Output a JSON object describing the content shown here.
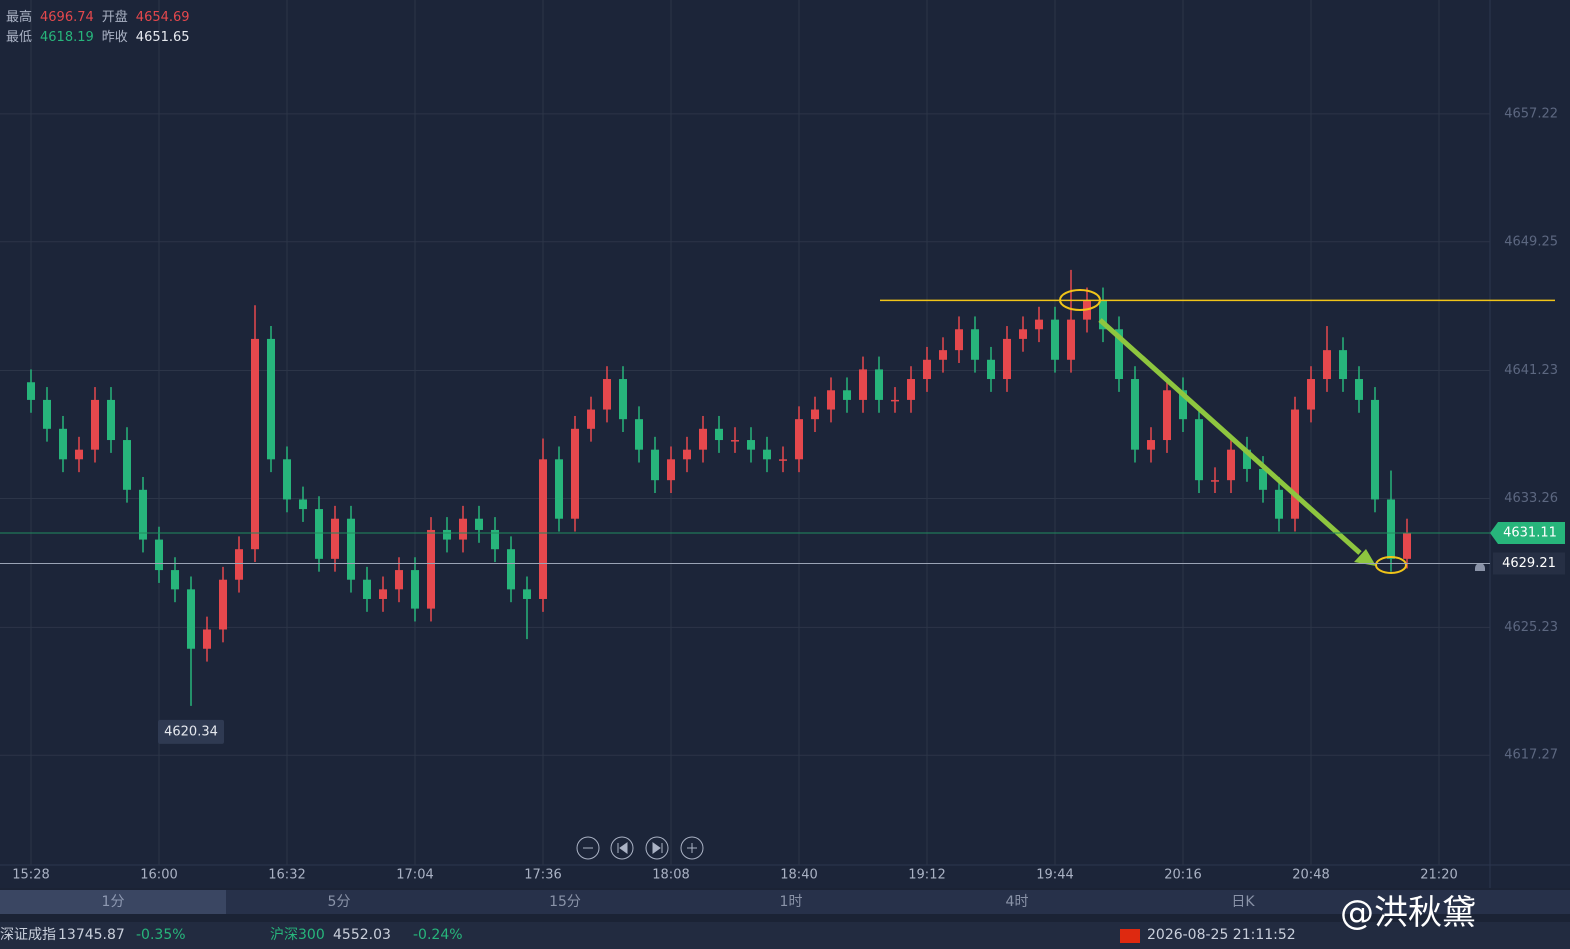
{
  "header": {
    "high_label": "最高",
    "high": "4696.74",
    "open_label": "开盘",
    "open": "4654.69",
    "low_label": "最低",
    "low": "4618.19",
    "prev_label": "昨收",
    "prev": "4651.65"
  },
  "chart_data": {
    "type": "candlestick",
    "up_color": "#e5484d",
    "down_color": "#27b57b",
    "grid": true,
    "ylim": [
      4610.43,
      4664.31
    ],
    "yticks": [
      4617.27,
      4625.23,
      4633.26,
      4641.23,
      4649.25,
      4657.22
    ],
    "xticks": [
      {
        "value": 0,
        "label": "15:28"
      },
      {
        "value": 8,
        "label": "16:00"
      },
      {
        "value": 16,
        "label": "16:32"
      },
      {
        "value": 24,
        "label": "17:04"
      },
      {
        "value": 32,
        "label": "17:36"
      },
      {
        "value": 40,
        "label": "18:08"
      },
      {
        "value": 48,
        "label": "18:40"
      },
      {
        "value": 56,
        "label": "19:12"
      },
      {
        "value": 64,
        "label": "19:44"
      },
      {
        "value": 72,
        "label": "20:16"
      },
      {
        "value": 80,
        "label": "20:48"
      },
      {
        "value": 88,
        "label": "21:20"
      }
    ],
    "open": [
      4640.5,
      4639.4,
      4637.6,
      4635.7,
      4636.3,
      4639.4,
      4636.9,
      4633.8,
      4630.7,
      4628.8,
      4627.6,
      4623.9,
      4625.1,
      4628.2,
      4630.1,
      4643.2,
      4635.7,
      4633.2,
      4632.6,
      4629.5,
      4632.0,
      4628.2,
      4627.0,
      4627.6,
      4628.8,
      4626.4,
      4631.3,
      4630.7,
      4632.0,
      4631.3,
      4630.1,
      4627.6,
      4627.0,
      4635.7,
      4632.0,
      4637.6,
      4638.8,
      4640.7,
      4638.2,
      4636.3,
      4634.4,
      4635.7,
      4636.3,
      4637.6,
      4636.9,
      4636.9,
      4636.3,
      4635.7,
      4635.7,
      4638.2,
      4638.8,
      4640.0,
      4639.4,
      4641.3,
      4639.4,
      4639.4,
      4640.7,
      4641.9,
      4642.5,
      4643.8,
      4641.9,
      4640.7,
      4643.2,
      4643.8,
      4644.4,
      4641.9,
      4644.4,
      4645.6,
      4643.8,
      4640.7,
      4636.3,
      4636.9,
      4640.0,
      4638.2,
      4634.4,
      4634.4,
      4636.3,
      4635.1,
      4633.8,
      4632.0,
      4638.8,
      4640.7,
      4642.5,
      4640.7,
      4639.4,
      4633.2,
      4629.5
    ],
    "high": [
      4641.3,
      4640.2,
      4638.4,
      4637.1,
      4640.2,
      4640.2,
      4637.7,
      4634.6,
      4631.5,
      4629.6,
      4628.4,
      4625.9,
      4629.0,
      4630.9,
      4645.3,
      4644.0,
      4636.5,
      4634.0,
      4633.4,
      4632.8,
      4632.8,
      4629.0,
      4628.4,
      4629.6,
      4629.6,
      4632.1,
      4632.1,
      4632.8,
      4632.8,
      4632.1,
      4630.9,
      4628.4,
      4637.0,
      4636.5,
      4638.4,
      4639.6,
      4641.5,
      4641.5,
      4639.0,
      4637.1,
      4636.5,
      4637.1,
      4638.4,
      4638.4,
      4637.7,
      4637.7,
      4637.1,
      4636.5,
      4639.0,
      4639.6,
      4640.8,
      4640.8,
      4642.1,
      4642.1,
      4640.2,
      4641.5,
      4642.7,
      4643.3,
      4644.6,
      4644.6,
      4642.7,
      4644.0,
      4644.6,
      4645.2,
      4645.2,
      4647.5,
      4646.4,
      4646.4,
      4644.6,
      4641.5,
      4637.7,
      4640.8,
      4640.8,
      4639.0,
      4635.2,
      4637.1,
      4637.1,
      4635.9,
      4634.6,
      4639.6,
      4641.5,
      4644.0,
      4643.3,
      4641.5,
      4640.2,
      4635.0,
      4632.0
    ],
    "low": [
      4638.6,
      4636.8,
      4634.9,
      4634.9,
      4635.5,
      4636.1,
      4633.0,
      4629.9,
      4628.0,
      4626.8,
      4620.34,
      4623.1,
      4624.3,
      4627.4,
      4629.3,
      4634.9,
      4632.4,
      4631.8,
      4628.7,
      4628.7,
      4627.4,
      4626.2,
      4626.2,
      4626.8,
      4625.6,
      4625.6,
      4629.9,
      4629.9,
      4630.5,
      4629.3,
      4626.8,
      4624.5,
      4626.2,
      4631.2,
      4631.2,
      4636.8,
      4638.0,
      4637.4,
      4635.5,
      4633.6,
      4633.6,
      4634.9,
      4635.5,
      4636.1,
      4636.1,
      4635.5,
      4634.9,
      4634.9,
      4634.9,
      4637.4,
      4638.0,
      4638.6,
      4638.6,
      4638.6,
      4638.6,
      4638.6,
      4639.9,
      4641.1,
      4641.7,
      4641.1,
      4639.9,
      4639.9,
      4642.4,
      4643.0,
      4641.1,
      4641.1,
      4643.6,
      4643.0,
      4639.9,
      4635.5,
      4635.5,
      4636.1,
      4637.4,
      4633.6,
      4633.6,
      4633.6,
      4634.3,
      4633.0,
      4631.2,
      4631.2,
      4638.0,
      4639.9,
      4639.9,
      4638.6,
      4632.4,
      4628.7,
      4628.9
    ],
    "close": [
      4639.4,
      4637.6,
      4635.7,
      4636.3,
      4639.4,
      4636.9,
      4633.8,
      4630.7,
      4628.8,
      4627.6,
      4623.9,
      4625.1,
      4628.2,
      4630.1,
      4643.2,
      4635.7,
      4633.2,
      4632.6,
      4629.5,
      4632.0,
      4628.2,
      4627.0,
      4627.6,
      4628.8,
      4626.4,
      4631.3,
      4630.7,
      4632.0,
      4631.3,
      4630.1,
      4627.6,
      4627.0,
      4635.7,
      4632.0,
      4637.6,
      4638.8,
      4640.7,
      4638.2,
      4636.3,
      4634.4,
      4635.7,
      4636.3,
      4637.6,
      4636.9,
      4636.9,
      4636.3,
      4635.7,
      4635.7,
      4638.2,
      4638.8,
      4640.0,
      4639.4,
      4641.3,
      4639.4,
      4639.4,
      4640.7,
      4641.9,
      4642.5,
      4643.8,
      4641.9,
      4640.7,
      4643.2,
      4643.8,
      4644.4,
      4641.9,
      4644.4,
      4645.6,
      4643.8,
      4640.7,
      4636.3,
      4636.9,
      4640.0,
      4638.2,
      4634.4,
      4634.4,
      4636.3,
      4635.1,
      4633.8,
      4632.0,
      4638.8,
      4640.7,
      4642.5,
      4640.7,
      4639.4,
      4633.2,
      4629.5,
      4631.1
    ],
    "min_marker": {
      "index": 10,
      "value": 4620.34
    },
    "last_price": 4631.11,
    "crosshair_price": 4629.21,
    "drawn_level": 4645.6
  },
  "tabs": [
    "1分",
    "5分",
    "15分",
    "1时",
    "4时",
    "日K"
  ],
  "ticker": [
    {
      "name": "深证成指",
      "price": "13745.87",
      "change": "-0.35%"
    },
    {
      "name": "沪深300",
      "price": "4552.03",
      "change": "-0.24%"
    }
  ],
  "status": {
    "datetime": "2026-08-25 21:11:52"
  },
  "watermark": "@洪秋黛"
}
